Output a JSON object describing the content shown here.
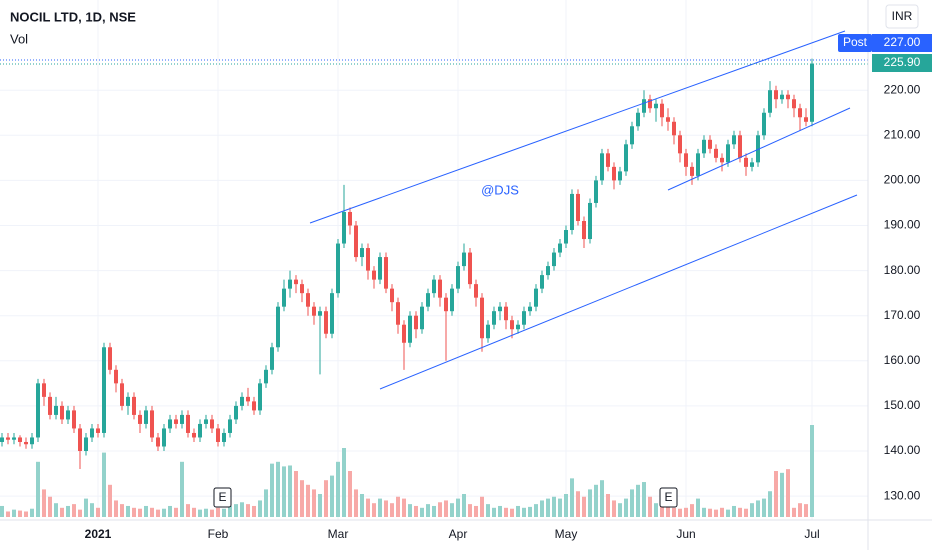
{
  "chart_data": {
    "type": "candlestick",
    "title": "NOCIL LTD, 1D, NSE",
    "volume_label": "Vol",
    "currency": "INR",
    "annotation": "@DJS",
    "earnings_marker": "E",
    "alert_label": "Post",
    "alert_price": "227.00",
    "last_price": "225.90",
    "up_color": "#26a69a",
    "down_color": "#ef5350",
    "up_volume_color": "#93d2cb",
    "down_volume_color": "#f7a9a7",
    "ylim": [
      124.7,
      240
    ],
    "yticks": [
      {
        "value": 130,
        "label": "130.00"
      },
      {
        "value": 140,
        "label": "140.00"
      },
      {
        "value": 150,
        "label": "150.00"
      },
      {
        "value": 160,
        "label": "160.00"
      },
      {
        "value": 170,
        "label": "170.00"
      },
      {
        "value": 180,
        "label": "180.00"
      },
      {
        "value": 190,
        "label": "190.00"
      },
      {
        "value": 200,
        "label": "200.00"
      },
      {
        "value": 210,
        "label": "210.00"
      },
      {
        "value": 220,
        "label": "220.00"
      }
    ],
    "categories": [
      null,
      null,
      null,
      null,
      null,
      null,
      null,
      null,
      null,
      null,
      null,
      null,
      null,
      null,
      null,
      null,
      "2021",
      null,
      null,
      null,
      null,
      null,
      null,
      null,
      null,
      null,
      null,
      null,
      null,
      null,
      null,
      null,
      null,
      null,
      null,
      null,
      "Feb",
      null,
      null,
      null,
      null,
      null,
      null,
      null,
      null,
      null,
      null,
      null,
      null,
      null,
      null,
      null,
      null,
      null,
      null,
      null,
      "Mar",
      null,
      null,
      null,
      null,
      null,
      null,
      null,
      null,
      null,
      null,
      null,
      null,
      null,
      null,
      null,
      null,
      null,
      null,
      null,
      "Apr",
      null,
      null,
      null,
      null,
      null,
      null,
      null,
      null,
      null,
      null,
      null,
      null,
      null,
      null,
      null,
      null,
      null,
      "May",
      null,
      null,
      null,
      null,
      null,
      null,
      null,
      null,
      null,
      null,
      null,
      null,
      null,
      null,
      null,
      null,
      null,
      null,
      null,
      "Jun",
      null,
      null,
      null,
      null,
      null,
      null,
      null,
      null,
      null,
      null,
      null,
      null,
      null,
      null,
      null,
      null,
      null,
      null,
      null,
      null,
      "Jul"
    ],
    "open": [
      142,
      143,
      142.5,
      143,
      142,
      141.5,
      143,
      155,
      152,
      148,
      150,
      147,
      149,
      145,
      140,
      143,
      145,
      144,
      163,
      158,
      155,
      150,
      152,
      148,
      146,
      149,
      143,
      141,
      145,
      147,
      146,
      148,
      144,
      143,
      146,
      147,
      145,
      142,
      144,
      147,
      150,
      152,
      151,
      149,
      155,
      158,
      163,
      172,
      176,
      178,
      177,
      175,
      172,
      170,
      171,
      166,
      175,
      186,
      193,
      190,
      183,
      185,
      180,
      178,
      183,
      176,
      173,
      168,
      164,
      170,
      167,
      172,
      175,
      178,
      174,
      171,
      176,
      181,
      184,
      177,
      174,
      165,
      168,
      171,
      172,
      169,
      167,
      168,
      171,
      172,
      176,
      179,
      181,
      184,
      186,
      189,
      197,
      191,
      187,
      195,
      200,
      206,
      203,
      200,
      202,
      208,
      212,
      215,
      218,
      216,
      217,
      214,
      213,
      210,
      206,
      203,
      201,
      206,
      209,
      207,
      205,
      204,
      208,
      210,
      205,
      203,
      204,
      210,
      215,
      220,
      218,
      219,
      218,
      216,
      214,
      213
    ],
    "high": [
      144,
      144,
      144,
      143.5,
      143,
      144,
      156,
      156,
      153,
      152,
      151,
      150,
      150,
      146,
      144,
      146,
      146,
      164,
      164,
      159,
      156,
      153,
      153,
      149,
      150,
      150,
      144,
      146,
      148,
      148,
      149,
      149,
      145,
      147,
      148,
      148,
      146,
      145,
      148,
      151,
      153,
      154,
      152,
      156,
      159,
      164,
      173,
      178,
      180,
      179,
      178,
      176,
      173,
      172,
      172,
      176,
      187,
      199,
      194,
      191,
      186,
      186,
      181,
      184,
      184,
      177,
      174,
      169,
      171,
      171,
      173,
      176,
      179,
      179,
      175,
      177,
      182,
      186,
      185,
      178,
      175,
      169,
      172,
      173,
      173,
      170,
      169,
      172,
      173,
      177,
      180,
      182,
      185,
      187,
      190,
      198,
      198,
      192,
      196,
      201,
      207,
      207,
      204,
      203,
      209,
      213,
      216,
      220,
      219,
      218,
      218,
      216,
      214,
      211,
      207,
      204,
      207,
      210,
      210,
      208,
      206,
      209,
      211,
      211,
      206,
      205,
      211,
      216,
      222,
      221,
      220,
      220,
      219,
      217,
      216,
      227
    ],
    "low": [
      141,
      141.5,
      141.5,
      141,
      140.5,
      140.5,
      142,
      150,
      147,
      147,
      146,
      146,
      144,
      136,
      139,
      142,
      143,
      143,
      157,
      153,
      149,
      148,
      147,
      144,
      145,
      142,
      140,
      140,
      144,
      145,
      145,
      143,
      142,
      142,
      145,
      144,
      141,
      141,
      143,
      146,
      149,
      150,
      148,
      148,
      154,
      157,
      162,
      171,
      174,
      175,
      173,
      170,
      168,
      157,
      165,
      165,
      174,
      185,
      188,
      182,
      181,
      178,
      176,
      177,
      175,
      171,
      166,
      158,
      163,
      165,
      166,
      171,
      174,
      172,
      160,
      170,
      175,
      180,
      176,
      172,
      162,
      164,
      167,
      169,
      167,
      165,
      166,
      167,
      170,
      171,
      175,
      178,
      180,
      183,
      185,
      188,
      190,
      185,
      186,
      194,
      199,
      202,
      198,
      199,
      201,
      207,
      211,
      214,
      215,
      213,
      212,
      211,
      208,
      204,
      201,
      199,
      200,
      205,
      206,
      204,
      202,
      203,
      207,
      204,
      201,
      202,
      203,
      209,
      214,
      216,
      217,
      216,
      214,
      211,
      212,
      212
    ],
    "close": [
      143,
      142.5,
      143,
      142,
      141.5,
      143,
      155,
      152,
      148,
      150,
      147,
      149,
      145,
      140,
      143,
      145,
      144,
      163,
      158,
      155,
      150,
      152,
      148,
      146,
      149,
      143,
      141,
      145,
      147,
      146,
      148,
      144,
      143,
      146,
      147,
      145,
      142,
      144,
      147,
      150,
      152,
      151,
      149,
      155,
      158,
      163,
      172,
      176,
      178,
      177,
      175,
      172,
      170,
      171,
      166,
      175,
      186,
      193,
      190,
      183,
      185,
      180,
      178,
      183,
      176,
      173,
      168,
      164,
      170,
      167,
      172,
      175,
      178,
      174,
      171,
      176,
      181,
      184,
      177,
      174,
      165,
      168,
      171,
      172,
      169,
      167,
      168,
      171,
      172,
      176,
      179,
      181,
      184,
      186,
      189,
      197,
      191,
      187,
      195,
      200,
      206,
      203,
      200,
      202,
      208,
      212,
      215,
      218,
      216,
      217,
      214,
      213,
      210,
      206,
      203,
      201,
      206,
      209,
      207,
      205,
      204,
      208,
      210,
      205,
      203,
      204,
      210,
      215,
      220,
      218,
      219,
      218,
      216,
      214,
      213,
      225.9
    ],
    "volume": [
      12,
      6,
      8,
      7,
      6,
      9,
      60,
      30,
      22,
      15,
      10,
      12,
      14,
      8,
      20,
      15,
      10,
      70,
      35,
      18,
      14,
      12,
      10,
      9,
      12,
      10,
      8,
      9,
      12,
      10,
      60,
      14,
      10,
      8,
      9,
      8,
      10,
      9,
      12,
      14,
      16,
      14,
      12,
      18,
      30,
      58,
      60,
      55,
      56,
      50,
      40,
      35,
      30,
      25,
      40,
      45,
      60,
      75,
      50,
      30,
      25,
      20,
      15,
      20,
      18,
      15,
      22,
      20,
      14,
      12,
      10,
      14,
      12,
      16,
      18,
      15,
      20,
      25,
      14,
      12,
      22,
      14,
      10,
      12,
      10,
      9,
      12,
      10,
      11,
      14,
      18,
      20,
      22,
      20,
      25,
      42,
      28,
      22,
      30,
      35,
      40,
      25,
      18,
      15,
      20,
      30,
      35,
      38,
      22,
      15,
      15,
      12,
      10,
      9,
      10,
      14,
      20,
      10,
      9,
      8,
      10,
      8,
      12,
      10,
      9,
      15,
      18,
      20,
      28,
      50,
      48,
      52,
      10,
      15,
      14,
      100
    ]
  }
}
